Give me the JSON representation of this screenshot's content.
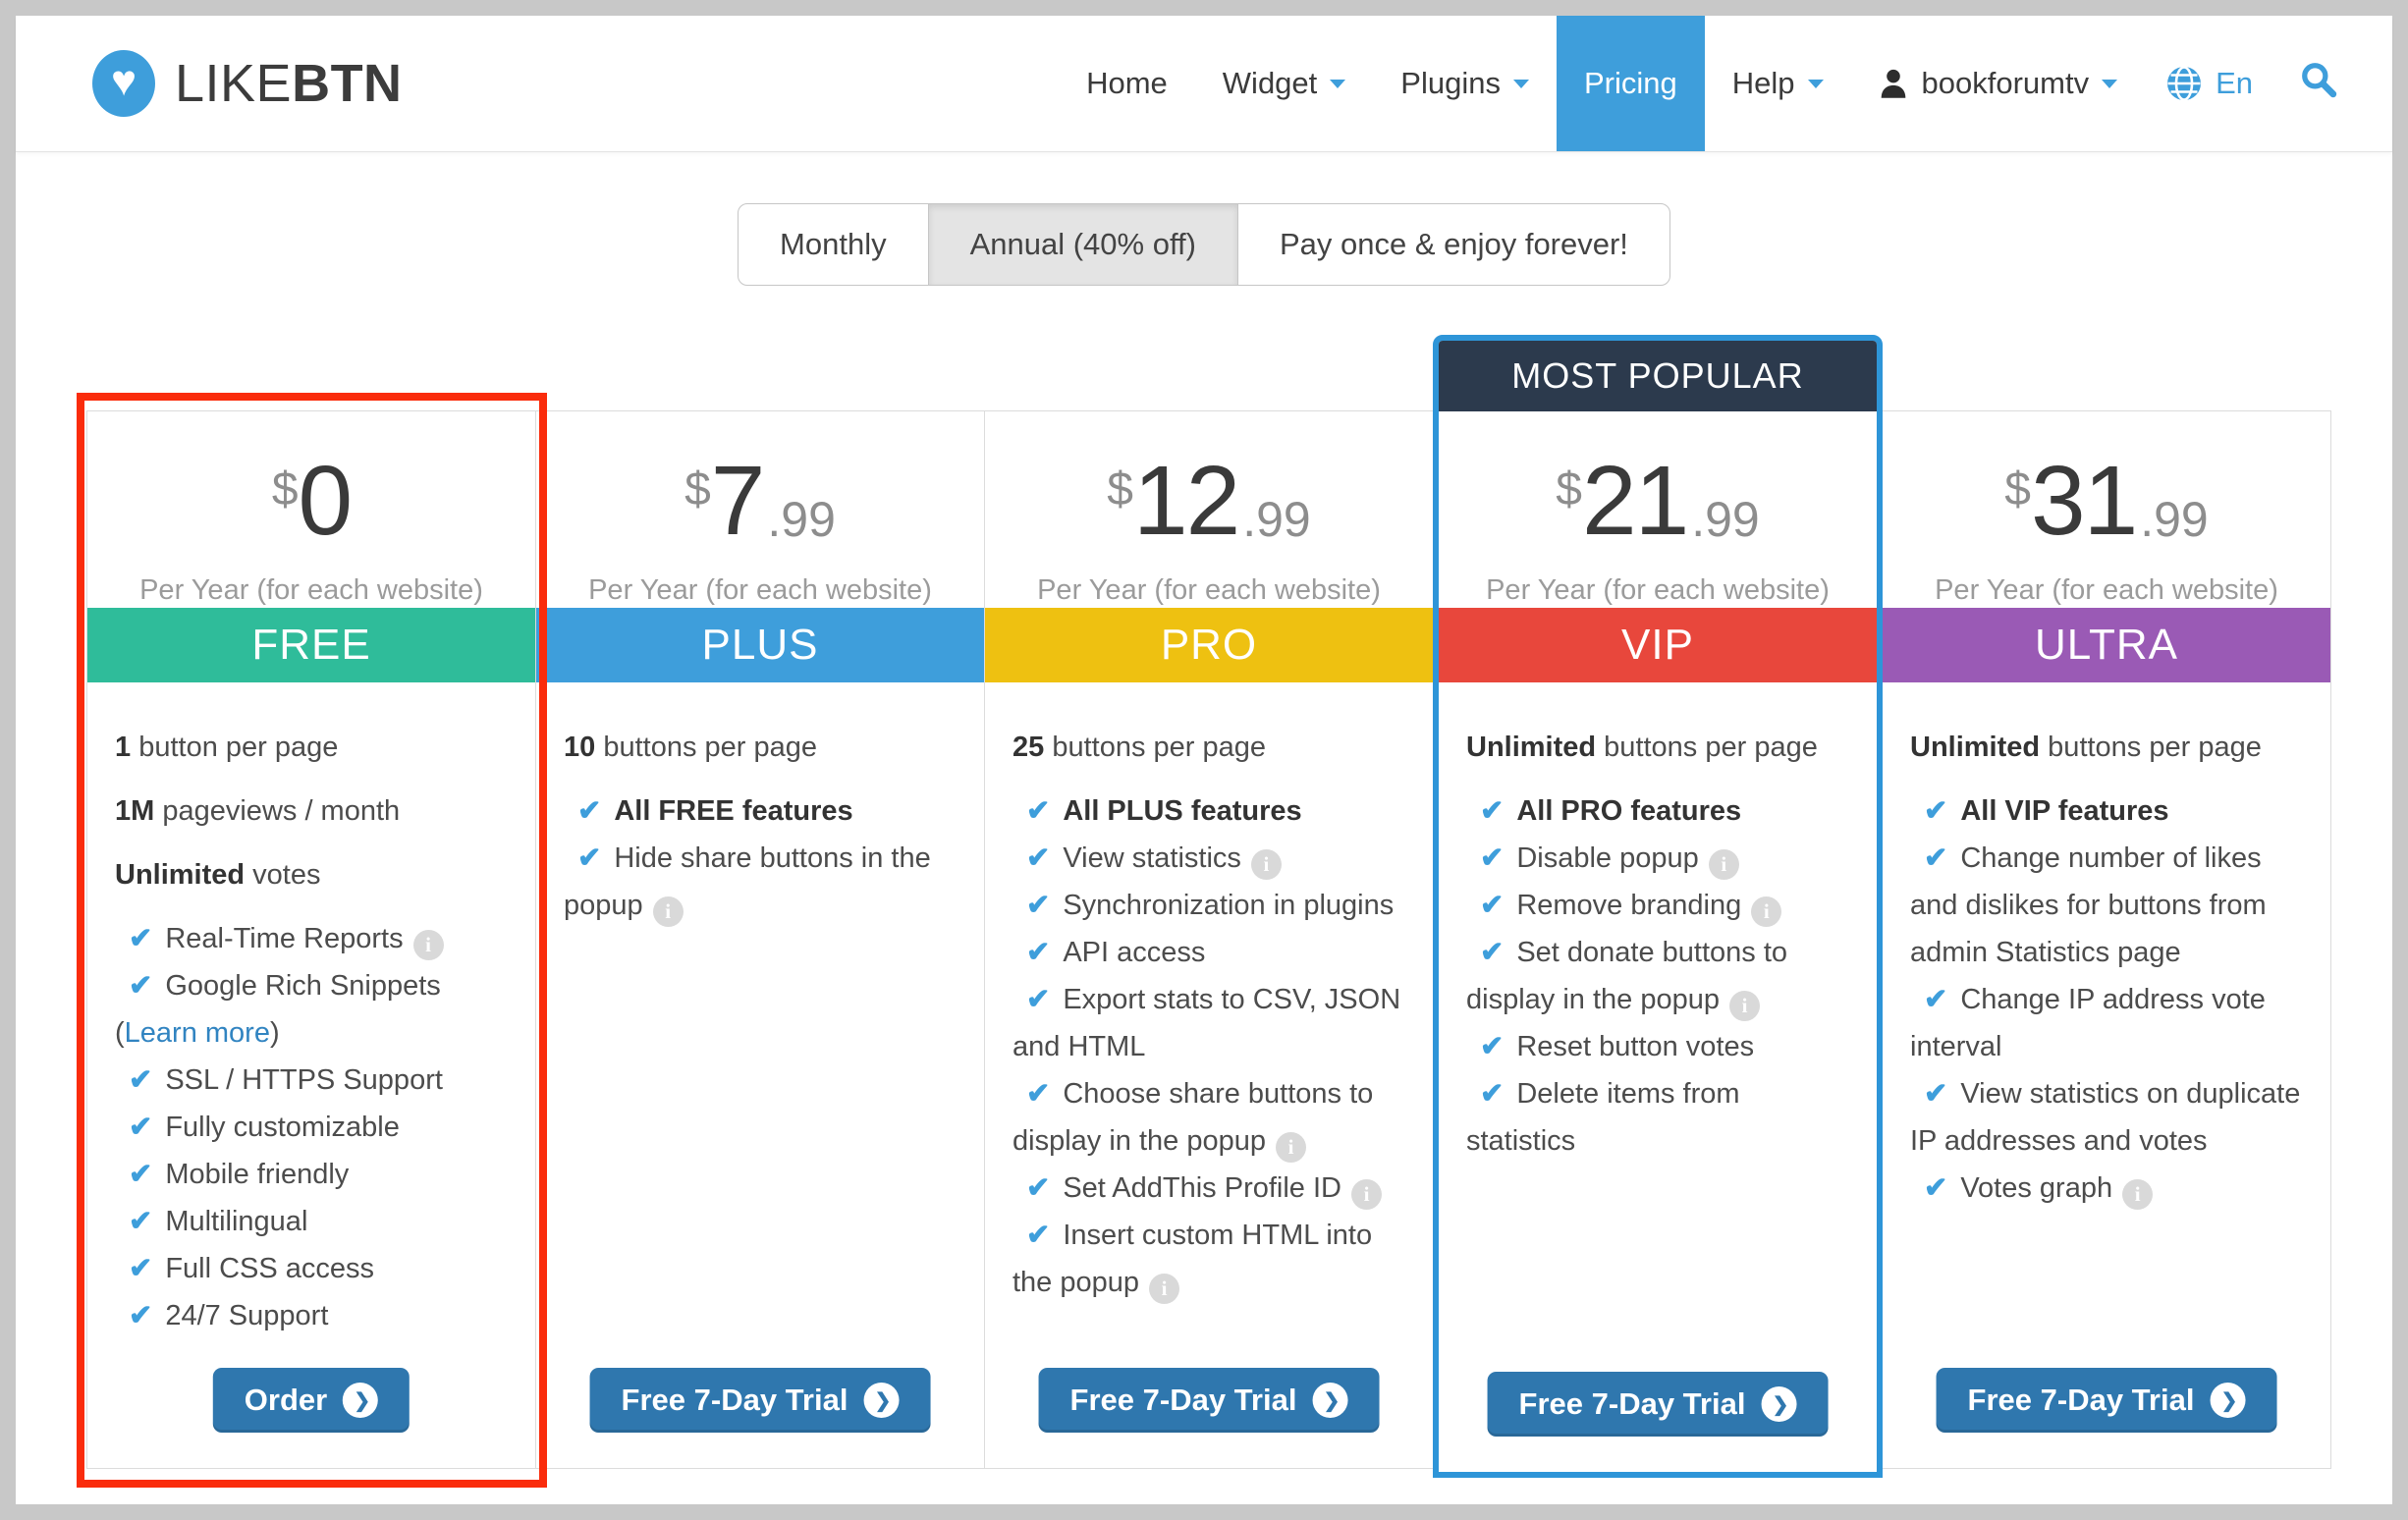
{
  "page": {
    "background": "#c8c8c8",
    "accent_blue": "#3e9edb",
    "link_blue": "#3184c1",
    "cta_blue": "#2f77ae",
    "most_popular_bg": "#2c3a4d",
    "free_highlight_frame": "#fa2c0c",
    "vip_highlight_frame": "#2e95d8"
  },
  "header": {
    "brand": {
      "first": "LIKE",
      "second": "BTN",
      "heart": "♥"
    },
    "nav": [
      {
        "label": "Home",
        "caret": false,
        "active": false
      },
      {
        "label": "Widget",
        "caret": true,
        "active": false
      },
      {
        "label": "Plugins",
        "caret": true,
        "active": false
      },
      {
        "label": "Pricing",
        "caret": false,
        "active": true
      },
      {
        "label": "Help",
        "caret": true,
        "active": false
      }
    ],
    "user": {
      "label": "bookforumtv"
    },
    "language": {
      "label": "En"
    }
  },
  "billing": {
    "options": [
      {
        "label": "Monthly",
        "selected": false
      },
      {
        "label": "Annual (40% off)",
        "selected": true
      },
      {
        "label": "Pay once & enjoy forever!",
        "selected": false
      }
    ]
  },
  "most_popular_label": "MOST POPULAR",
  "plans": [
    {
      "name": "FREE",
      "currency": "$",
      "price_int": "0",
      "price_cents": "",
      "period": "Per Year (for each website)",
      "banner_color": "#2fbc9a",
      "cta_label": "Order",
      "highlight": "red",
      "most_popular": false,
      "features": [
        {
          "type": "quota",
          "bold": "1",
          "text": " button per page"
        },
        {
          "type": "quota",
          "bold": "1M",
          "text": " pageviews / month"
        },
        {
          "type": "quota",
          "bold": "Unlimited",
          "text": " votes"
        },
        {
          "type": "check",
          "text": "Real-Time Reports",
          "info": true
        },
        {
          "type": "check",
          "text": "Google Rich Snippets"
        },
        {
          "type": "link",
          "prefix": "(",
          "text": "Learn more",
          "suffix": ")"
        },
        {
          "type": "check",
          "text": "SSL / HTTPS Support"
        },
        {
          "type": "check",
          "text": "Fully customizable"
        },
        {
          "type": "check",
          "text": "Mobile friendly"
        },
        {
          "type": "check",
          "text": "Multilingual"
        },
        {
          "type": "check",
          "text": "Full CSS access"
        },
        {
          "type": "check",
          "text": "24/7 Support"
        }
      ]
    },
    {
      "name": "PLUS",
      "currency": "$",
      "price_int": "7",
      "price_cents": "99",
      "period": "Per Year (for each website)",
      "banner_color": "#3e9edb",
      "cta_label": "Free 7-Day Trial",
      "highlight": "",
      "most_popular": false,
      "features": [
        {
          "type": "quota",
          "bold": "10",
          "text": " buttons per page"
        },
        {
          "type": "check",
          "bold": "All FREE features"
        },
        {
          "type": "check",
          "text": "Hide share buttons in the popup",
          "info": true
        }
      ]
    },
    {
      "name": "PRO",
      "currency": "$",
      "price_int": "12",
      "price_cents": "99",
      "period": "Per Year (for each website)",
      "banner_color": "#eec111",
      "cta_label": "Free 7-Day Trial",
      "highlight": "",
      "most_popular": false,
      "features": [
        {
          "type": "quota",
          "bold": "25",
          "text": " buttons per page"
        },
        {
          "type": "check",
          "bold": "All PLUS features"
        },
        {
          "type": "check",
          "text": "View statistics",
          "info": true
        },
        {
          "type": "check",
          "text": "Synchronization in plugins"
        },
        {
          "type": "check",
          "text": "API access"
        },
        {
          "type": "check",
          "text": "Export stats to CSV, JSON and HTML"
        },
        {
          "type": "check",
          "text": "Choose share buttons to display in the popup",
          "info": true
        },
        {
          "type": "check",
          "text": "Set AddThis Profile ID",
          "info": true
        },
        {
          "type": "check",
          "text": "Insert custom HTML into the popup",
          "info": true
        }
      ]
    },
    {
      "name": "VIP",
      "currency": "$",
      "price_int": "21",
      "price_cents": "99",
      "period": "Per Year (for each website)",
      "banner_color": "#e8473c",
      "cta_label": "Free 7-Day Trial",
      "highlight": "blue",
      "most_popular": true,
      "features": [
        {
          "type": "quota",
          "bold": "Unlimited",
          "text": " buttons per page"
        },
        {
          "type": "check",
          "bold": "All PRO features"
        },
        {
          "type": "check",
          "text": "Disable popup",
          "info": true
        },
        {
          "type": "check",
          "text": "Remove branding",
          "info": true
        },
        {
          "type": "check",
          "text": "Set donate buttons to display in the popup",
          "info": true
        },
        {
          "type": "check",
          "text": "Reset button votes"
        },
        {
          "type": "check",
          "text": "Delete items from statistics"
        }
      ]
    },
    {
      "name": "ULTRA",
      "currency": "$",
      "price_int": "31",
      "price_cents": "99",
      "period": "Per Year (for each website)",
      "banner_color": "#9a5ab5",
      "cta_label": "Free 7-Day Trial",
      "highlight": "",
      "most_popular": false,
      "features": [
        {
          "type": "quota",
          "bold": "Unlimited",
          "text": " buttons per page"
        },
        {
          "type": "check",
          "bold": "All VIP features"
        },
        {
          "type": "check",
          "text": "Change number of likes and dislikes for buttons from admin Statistics page"
        },
        {
          "type": "check",
          "text": "Change IP address vote interval"
        },
        {
          "type": "check",
          "text": "View statistics on duplicate IP addresses and votes"
        },
        {
          "type": "check",
          "text": "Votes graph",
          "info": true
        }
      ]
    }
  ]
}
